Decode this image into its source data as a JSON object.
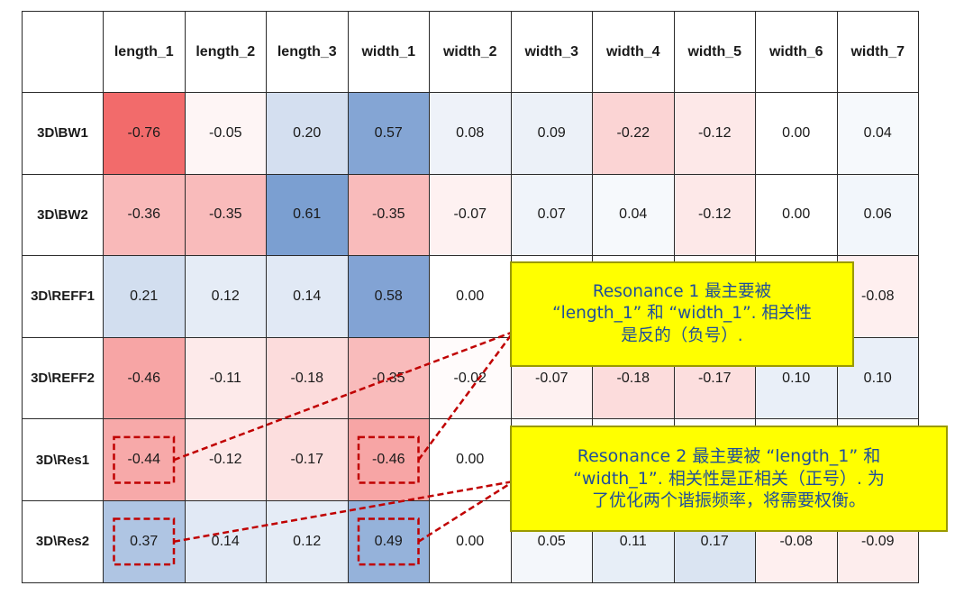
{
  "chart_data": {
    "type": "heatmap",
    "columns": [
      "length_1",
      "length_2",
      "length_3",
      "width_1",
      "width_2",
      "width_3",
      "width_4",
      "width_5",
      "width_6",
      "width_7"
    ],
    "rows": [
      "3D\\BW1",
      "3D\\BW2",
      "3D\\REFF1",
      "3D\\REFF2",
      "3D\\Res1",
      "3D\\Res2"
    ],
    "values": [
      [
        "-0.76",
        "-0.05",
        "0.20",
        "0.57",
        "0.08",
        "0.09",
        "-0.22",
        "-0.12",
        "0.00",
        "0.04"
      ],
      [
        "-0.36",
        "-0.35",
        "0.61",
        "-0.35",
        "-0.07",
        "0.07",
        "0.04",
        "-0.12",
        "0.00",
        "0.06"
      ],
      [
        "0.21",
        "0.12",
        "0.14",
        "0.58",
        "0.00",
        "",
        "",
        "",
        "",
        "-0.08"
      ],
      [
        "-0.46",
        "-0.11",
        "-0.18",
        "-0.35",
        "-0.02",
        "-0.07",
        "-0.18",
        "-0.17",
        "0.10",
        "0.10"
      ],
      [
        "-0.44",
        "-0.12",
        "-0.17",
        "-0.46",
        "0.00",
        "",
        "",
        "",
        "",
        ""
      ],
      [
        "0.37",
        "0.14",
        "0.12",
        "0.49",
        "0.00",
        "0.05",
        "0.11",
        "0.17",
        "-0.08",
        "-0.09"
      ]
    ],
    "color_scale": {
      "negative": "#f26b6b",
      "zero": "#ffffff",
      "positive": "#5b87c6"
    },
    "highlighted_cells": [
      [
        4,
        0
      ],
      [
        4,
        3
      ],
      [
        5,
        0
      ],
      [
        5,
        3
      ]
    ]
  },
  "callouts": [
    {
      "text": "Resonance 1 最主要被\n“length_1” 和 “width_1”. 相关性\n是反的（负号）.",
      "targets": [
        [
          4,
          0
        ],
        [
          4,
          3
        ]
      ]
    },
    {
      "text": "Resonance 2 最主要被 “length_1” 和\n“width_1”. 相关性是正相关（正号）. 为\n了优化两个谐振频率，将需要权衡。",
      "targets": [
        [
          5,
          0
        ],
        [
          5,
          3
        ]
      ]
    }
  ]
}
